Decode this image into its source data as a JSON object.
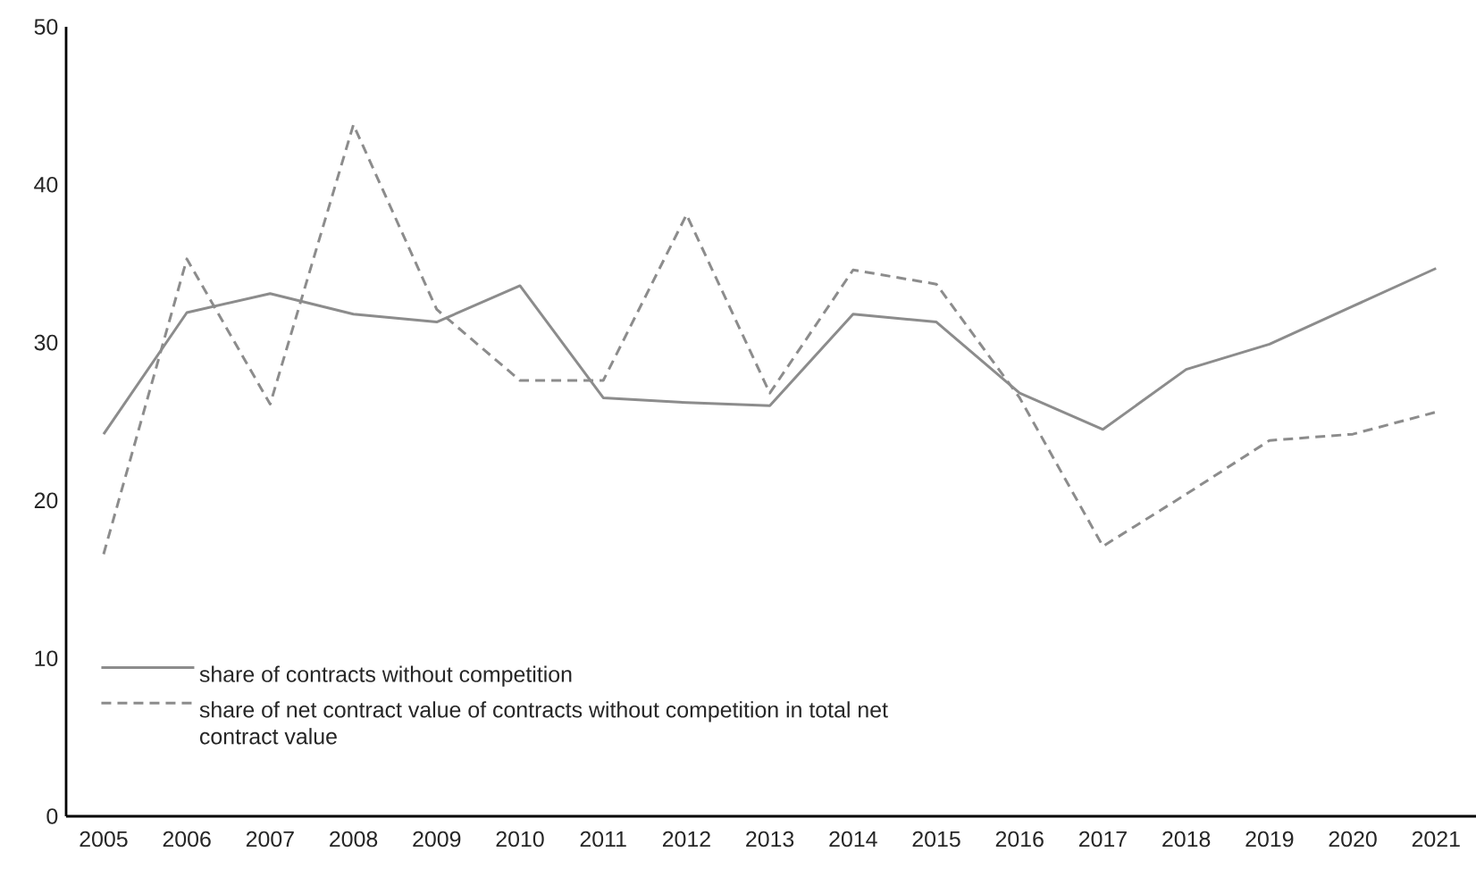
{
  "chart_data": {
    "type": "line",
    "categories": [
      "2005",
      "2006",
      "2007",
      "2008",
      "2009",
      "2010",
      "2011",
      "2012",
      "2013",
      "2014",
      "2015",
      "2016",
      "2017",
      "2018",
      "2019",
      "2020",
      "2021"
    ],
    "series": [
      {
        "name": "share of contracts without competition",
        "color": "#8c8c8c",
        "line_style": "solid",
        "values": [
          24.2,
          31.9,
          33.1,
          31.8,
          31.3,
          33.6,
          26.5,
          26.2,
          26.0,
          31.8,
          31.3,
          26.8,
          24.5,
          28.3,
          29.9,
          32.3,
          34.7
        ]
      },
      {
        "name": "share of net contract value of contracts without competition in total net contract value",
        "color": "#8c8c8c",
        "line_style": "dashed",
        "values": [
          16.6,
          35.3,
          26.1,
          43.8,
          32.1,
          27.6,
          27.6,
          38.1,
          26.8,
          34.6,
          33.7,
          26.5,
          17.1,
          20.4,
          23.8,
          24.2,
          25.6
        ]
      }
    ],
    "ylim": [
      0,
      50
    ],
    "yticks": [
      0,
      10,
      20,
      30,
      40,
      50
    ],
    "grid": false,
    "legend": "bottom left",
    "marker": "none"
  }
}
